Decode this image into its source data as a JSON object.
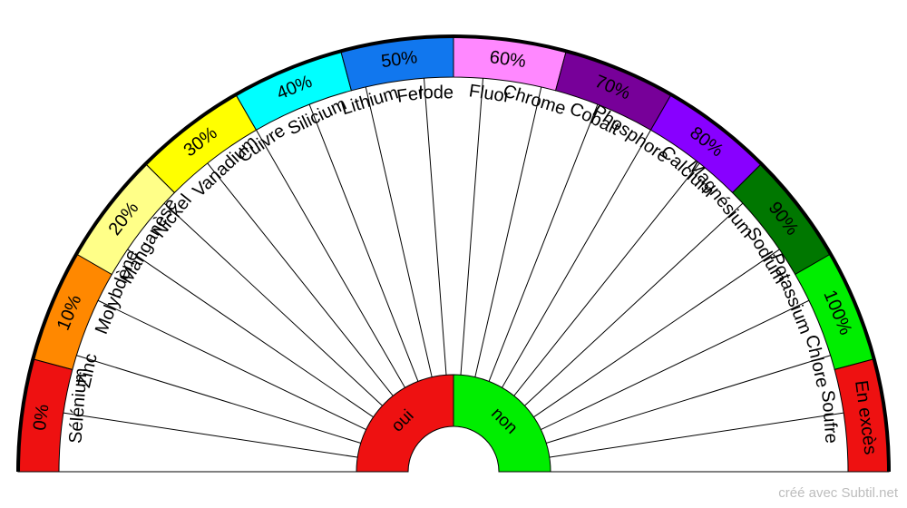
{
  "diagram": {
    "outer_bands": [
      {
        "label": "0%",
        "color": "#ee1111"
      },
      {
        "label": "10%",
        "color": "#ff8800"
      },
      {
        "label": "20%",
        "color": "#ffff88"
      },
      {
        "label": "30%",
        "color": "#ffff00"
      },
      {
        "label": "40%",
        "color": "#00ffff"
      },
      {
        "label": "50%",
        "color": "#1177ee"
      },
      {
        "label": "60%",
        "color": "#ff88ff"
      },
      {
        "label": "70%",
        "color": "#770099"
      },
      {
        "label": "80%",
        "color": "#8800ff"
      },
      {
        "label": "90%",
        "color": "#007700"
      },
      {
        "label": "100%",
        "color": "#00ee00"
      },
      {
        "label": "En excès",
        "color": "#ee1111"
      }
    ],
    "elements": [
      "Sélénium",
      "Zinc",
      "Molybdène",
      "Manganèse",
      "Nickel",
      "Vanadium",
      "Cuivre",
      "Silicium",
      "Lithium",
      "Fer",
      "Iode",
      "Fluor",
      "Chrome",
      "Cobalt",
      "Phosphore",
      "Calcium",
      "Magnésium",
      "Sodium",
      "Potassium",
      "Chlore",
      "Soufre"
    ],
    "center": [
      {
        "label": "oui",
        "color": "#ee1111"
      },
      {
        "label": "non",
        "color": "#00ee00"
      }
    ]
  },
  "footer": {
    "credit": "créé avec Subtil.net"
  }
}
